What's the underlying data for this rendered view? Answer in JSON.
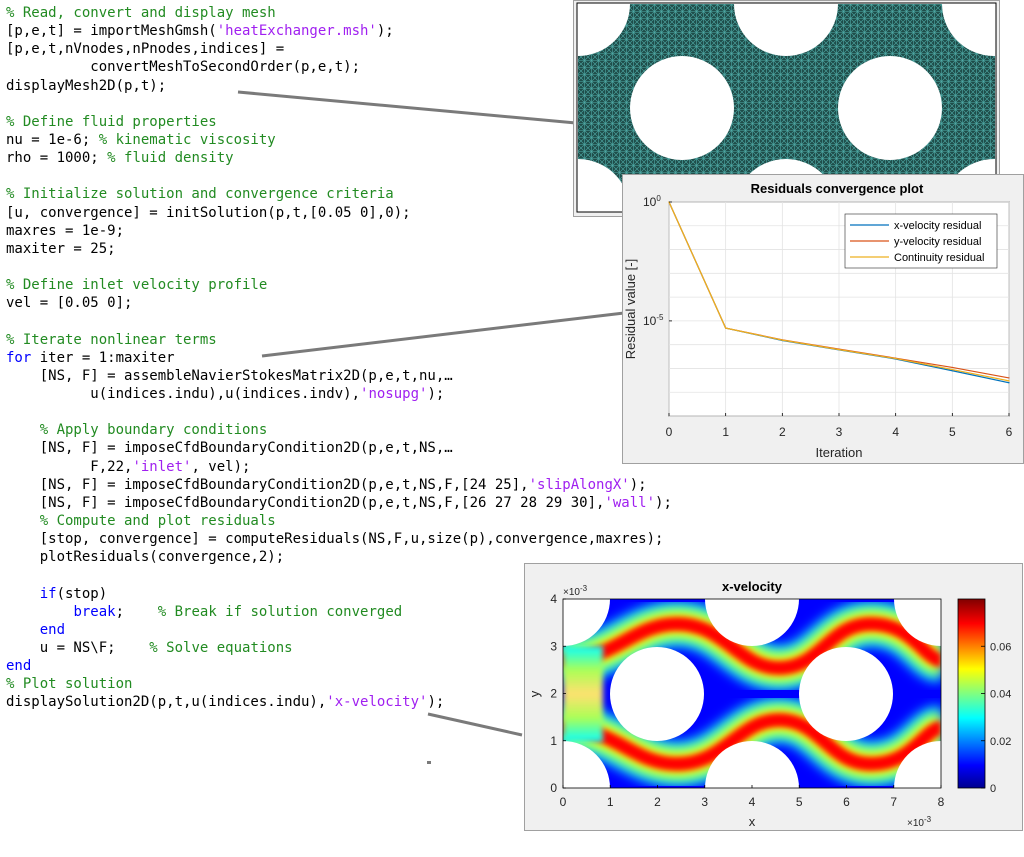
{
  "code": {
    "lines": [
      {
        "segs": [
          {
            "t": "% Read, convert and display mesh",
            "c": "cm"
          }
        ]
      },
      {
        "segs": [
          {
            "t": "[p,e,t] = importMeshGmsh(",
            "c": ""
          },
          {
            "t": "'heatExchanger.msh'",
            "c": "st"
          },
          {
            "t": ");",
            "c": ""
          }
        ]
      },
      {
        "segs": [
          {
            "t": "[p,e,t,nVnodes,nPnodes,indices] =",
            "c": ""
          }
        ]
      },
      {
        "segs": [
          {
            "t": "          convertMeshToSecondOrder(p,e,t);",
            "c": ""
          }
        ]
      },
      {
        "segs": [
          {
            "t": "displayMesh2D(p,t);",
            "c": ""
          }
        ]
      },
      {
        "segs": [
          {
            "t": "",
            "c": ""
          }
        ]
      },
      {
        "segs": [
          {
            "t": "% Define fluid properties",
            "c": "cm"
          }
        ]
      },
      {
        "segs": [
          {
            "t": "nu = 1e-6; ",
            "c": ""
          },
          {
            "t": "% kinematic viscosity",
            "c": "cm"
          }
        ]
      },
      {
        "segs": [
          {
            "t": "rho = 1000; ",
            "c": ""
          },
          {
            "t": "% fluid density",
            "c": "cm"
          }
        ]
      },
      {
        "segs": [
          {
            "t": "",
            "c": ""
          }
        ]
      },
      {
        "segs": [
          {
            "t": "% Initialize solution and convergence criteria",
            "c": "cm"
          }
        ]
      },
      {
        "segs": [
          {
            "t": "[u, convergence] = initSolution(p,t,[0.05 0],0);",
            "c": ""
          }
        ]
      },
      {
        "segs": [
          {
            "t": "maxres = 1e-9;",
            "c": ""
          }
        ]
      },
      {
        "segs": [
          {
            "t": "maxiter = 25;",
            "c": ""
          }
        ]
      },
      {
        "segs": [
          {
            "t": "",
            "c": ""
          }
        ]
      },
      {
        "segs": [
          {
            "t": "% Define inlet velocity profile",
            "c": "cm"
          }
        ]
      },
      {
        "segs": [
          {
            "t": "vel = [0.05 0];",
            "c": ""
          }
        ]
      },
      {
        "segs": [
          {
            "t": "",
            "c": ""
          }
        ]
      },
      {
        "segs": [
          {
            "t": "% Iterate nonlinear terms",
            "c": "cm"
          }
        ]
      },
      {
        "segs": [
          {
            "t": "for",
            "c": "kw"
          },
          {
            "t": " iter = 1:maxiter",
            "c": ""
          }
        ]
      },
      {
        "segs": [
          {
            "t": "    [NS, F] = assembleNavierStokesMatrix2D(p,e,t,nu,…",
            "c": ""
          }
        ]
      },
      {
        "segs": [
          {
            "t": "          u(indices.indu),u(indices.indv),",
            "c": ""
          },
          {
            "t": "'nosupg'",
            "c": "st"
          },
          {
            "t": ");",
            "c": ""
          }
        ]
      },
      {
        "segs": [
          {
            "t": "",
            "c": ""
          }
        ]
      },
      {
        "segs": [
          {
            "t": "    % Apply boundary conditions",
            "c": "cm"
          }
        ]
      },
      {
        "segs": [
          {
            "t": "    [NS, F] = imposeCfdBoundaryCondition2D(p,e,t,NS,…",
            "c": ""
          }
        ]
      },
      {
        "segs": [
          {
            "t": "          F,22,",
            "c": ""
          },
          {
            "t": "'inlet'",
            "c": "st"
          },
          {
            "t": ", vel);",
            "c": ""
          }
        ]
      },
      {
        "segs": [
          {
            "t": "    [NS, F] = imposeCfdBoundaryCondition2D(p,e,t,NS,F,[24 25],",
            "c": ""
          },
          {
            "t": "'slipAlongX'",
            "c": "st"
          },
          {
            "t": ");",
            "c": ""
          }
        ]
      },
      {
        "segs": [
          {
            "t": "    [NS, F] = imposeCfdBoundaryCondition2D(p,e,t,NS,F,[26 27 28 29 30],",
            "c": ""
          },
          {
            "t": "'wall'",
            "c": "st"
          },
          {
            "t": ");",
            "c": ""
          }
        ]
      },
      {
        "segs": [
          {
            "t": "    % Compute and plot residuals",
            "c": "cm"
          }
        ]
      },
      {
        "segs": [
          {
            "t": "    [stop, convergence] = computeResiduals(NS,F,u,size(p),convergence,maxres);",
            "c": ""
          }
        ]
      },
      {
        "segs": [
          {
            "t": "    plotResiduals(convergence,2);",
            "c": ""
          }
        ]
      },
      {
        "segs": [
          {
            "t": "",
            "c": ""
          }
        ]
      },
      {
        "segs": [
          {
            "t": "    ",
            "c": ""
          },
          {
            "t": "if",
            "c": "kw"
          },
          {
            "t": "(stop)",
            "c": ""
          }
        ]
      },
      {
        "segs": [
          {
            "t": "        ",
            "c": ""
          },
          {
            "t": "break",
            "c": "kw"
          },
          {
            "t": ";    ",
            "c": ""
          },
          {
            "t": "% Break if solution converged",
            "c": "cm"
          }
        ]
      },
      {
        "segs": [
          {
            "t": "    ",
            "c": ""
          },
          {
            "t": "end",
            "c": "kw"
          }
        ]
      },
      {
        "segs": [
          {
            "t": "    u = NS\\F;    ",
            "c": ""
          },
          {
            "t": "% Solve equations",
            "c": "cm"
          }
        ]
      },
      {
        "segs": [
          {
            "t": "end",
            "c": "kw"
          }
        ]
      },
      {
        "segs": [
          {
            "t": "% Plot solution",
            "c": "cm"
          }
        ]
      },
      {
        "segs": [
          {
            "t": "displaySolution2D(p,t,u(indices.indu),",
            "c": ""
          },
          {
            "t": "'x-velocity'",
            "c": "st"
          },
          {
            "t": ");",
            "c": ""
          }
        ]
      }
    ]
  },
  "colors": {
    "comment": "#228b22",
    "keyword": "#0000ff",
    "string": "#a020f0",
    "mesh_fill": "#1f4d4a",
    "series_x": "#0072bd",
    "series_y": "#d95319",
    "series_c": "#edb120"
  },
  "chart_data": [
    {
      "type": "line",
      "title": "Residuals convergence plot",
      "xlabel": "Iteration",
      "ylabel": "Residual value [-]",
      "x": [
        0,
        1,
        2,
        3,
        4,
        5,
        6
      ],
      "xticks": [
        "0",
        "1",
        "2",
        "3",
        "4",
        "5",
        "6"
      ],
      "ytick_labels": [
        {
          "value": 1,
          "base": "10",
          "exp": "0"
        },
        {
          "value": 1e-05,
          "base": "10",
          "exp": "-5"
        }
      ],
      "yscale": "log",
      "ylim": [
        1e-09,
        1
      ],
      "grid": true,
      "legend_position": "top-right",
      "series": [
        {
          "name": "x-velocity residual",
          "color": "#0072bd",
          "values": [
            1,
            5e-06,
            1.5e-06,
            6e-07,
            2.5e-07,
            8e-08,
            2.5e-08
          ]
        },
        {
          "name": "y-velocity residual",
          "color": "#d95319",
          "values": [
            1,
            5e-06,
            1.6e-06,
            6.5e-07,
            2.7e-07,
            1.1e-07,
            4e-08
          ]
        },
        {
          "name": "Continuity residual",
          "color": "#edb120",
          "values": [
            1,
            5e-06,
            1.55e-06,
            6.2e-07,
            2.6e-07,
            9e-08,
            3e-08
          ]
        }
      ]
    },
    {
      "type": "heatmap",
      "title": "x-velocity",
      "xlabel": "x",
      "ylabel": "y",
      "x_exponent_label": "×10",
      "x_exponent": "-3",
      "y_exponent_label": "×10",
      "y_exponent": "-3",
      "xlim": [
        0,
        8
      ],
      "ylim": [
        0,
        4
      ],
      "xticks": [
        "0",
        "1",
        "2",
        "3",
        "4",
        "5",
        "6",
        "7",
        "8"
      ],
      "yticks": [
        "0",
        "1",
        "2",
        "3",
        "4"
      ],
      "colorbar_ticks": [
        "0",
        "0.02",
        "0.04",
        "0.06"
      ],
      "colorbar_values": [
        0,
        0.02,
        0.04,
        0.06
      ],
      "colorbar_max": 0.08,
      "colormap": "jet"
    }
  ],
  "mesh_window": {
    "label": ""
  }
}
